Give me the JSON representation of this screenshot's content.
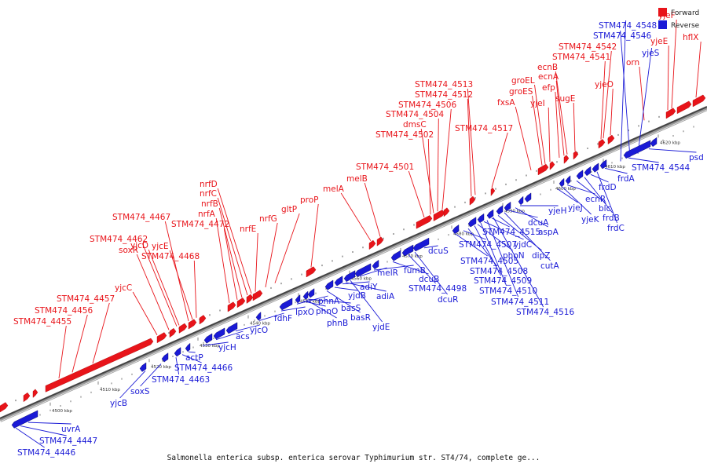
{
  "caption": "Salmonella enterica subsp. enterica serovar Typhimurium str. ST4/74, complete ge...",
  "legend": {
    "forward": "Forward",
    "reverse": "Reverse"
  },
  "colors": {
    "forward": "#e8141a",
    "reverse": "#1a1ad6",
    "backbone": "#555555"
  },
  "ticks": [
    "4500 kbp",
    "4510 kbp",
    "4520 kbp",
    "4530 kbp",
    "4540 kbp",
    "4550 kbp",
    "4560 kbp",
    "4570 kbp",
    "4580 kbp",
    "4590 kbp",
    "4600 kbp",
    "4610 kbp",
    "4620 kbp"
  ],
  "forward_genes": [
    "STM474_4455",
    "STM474_4456",
    "STM474_4457",
    "yjcC",
    "soxR",
    "STM474_4462",
    "yjcD",
    "STM474_4467",
    "yjcE",
    "STM474_4468",
    "nrfA",
    "STM474_4472",
    "nrfB",
    "nrfC",
    "nrfD",
    "nrfE",
    "nrfG",
    "gltP",
    "proP",
    "melA",
    "melB",
    "STM474_4501",
    "STM474_4502",
    "dmsC",
    "STM474_4504",
    "STM474_4506",
    "STM474_4512",
    "STM474_4513",
    "STM474_4517",
    "fxsA",
    "groES",
    "groEL",
    "yjeI",
    "efp",
    "ecnA",
    "ecnB",
    "sugE",
    "STM474_4541",
    "STM474_4542",
    "yjeO",
    "orn",
    "yjeE",
    "yjeF",
    "hflX"
  ],
  "reverse_genes": [
    "STM474_4446",
    "STM474_4447",
    "uvrA",
    "yjcB",
    "soxS",
    "STM474_4463",
    "STM474_4466",
    "actP",
    "yjcH",
    "acs",
    "yjcO",
    "fdhF",
    "lpxO",
    "phnA",
    "phnB",
    "phnO",
    "basS",
    "basR",
    "yjdB",
    "adiY",
    "adiA",
    "yjdE",
    "melR",
    "fumB",
    "dcuB",
    "STM474_4498",
    "dcuR",
    "dcuS",
    "STM474_4505",
    "STM474_4507",
    "STM474_4508",
    "STM474_4509",
    "STM474_4510",
    "STM474_4511",
    "STM474_4516",
    "phoN",
    "yjdC",
    "STM474_4515",
    "dipZ",
    "cutA",
    "dcuA",
    "aspA",
    "yjeH",
    "yjeJ",
    "yjeK",
    "ecnR",
    "blc",
    "frdB",
    "frdD",
    "frdC",
    "frdA",
    "STM474_4544",
    "psd",
    "yjeS",
    "STM474_4546",
    "STM474_4548"
  ]
}
